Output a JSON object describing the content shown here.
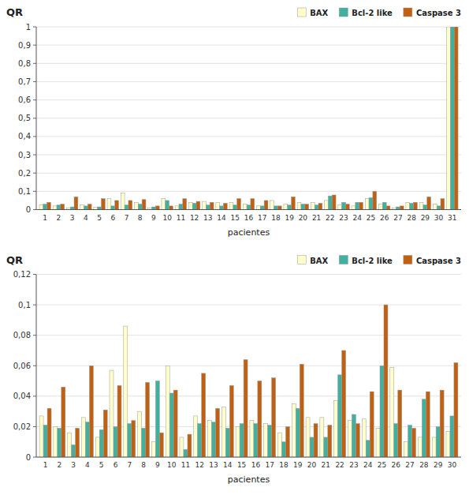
{
  "chart_data": [
    {
      "type": "bar",
      "ylabel": "QR",
      "xlabel": "pacientes",
      "categories": [
        1,
        2,
        3,
        4,
        5,
        6,
        7,
        8,
        9,
        10,
        11,
        12,
        13,
        14,
        15,
        16,
        17,
        18,
        19,
        20,
        21,
        22,
        23,
        24,
        25,
        26,
        27,
        28,
        29,
        30,
        31
      ],
      "series": [
        {
          "name": "BAX",
          "color": "#ffffcc",
          "values": [
            0.027,
            0.02,
            0.01,
            0.025,
            0.012,
            0.06,
            0.09,
            0.04,
            0.01,
            0.06,
            0.02,
            0.04,
            0.045,
            0.04,
            0.04,
            0.03,
            0.02,
            0.05,
            0.03,
            0.04,
            0.04,
            0.05,
            0.025,
            0.02,
            0.06,
            0.03,
            0.01,
            0.04,
            0.04,
            0.03,
            1.0
          ]
        },
        {
          "name": "Bcl-2 like",
          "color": "#40b0a0",
          "values": [
            0.03,
            0.025,
            0.015,
            0.02,
            0.015,
            0.02,
            0.025,
            0.03,
            0.015,
            0.05,
            0.03,
            0.035,
            0.025,
            0.02,
            0.025,
            0.025,
            0.02,
            0.02,
            0.025,
            0.03,
            0.025,
            0.075,
            0.04,
            0.04,
            0.065,
            0.04,
            0.015,
            0.035,
            0.025,
            0.02,
            1.0
          ]
        },
        {
          "name": "Caspase 3",
          "color": "#c06010",
          "values": [
            0.04,
            0.03,
            0.07,
            0.03,
            0.06,
            0.05,
            0.05,
            0.055,
            0.02,
            0.02,
            0.06,
            0.045,
            0.04,
            0.035,
            0.06,
            0.06,
            0.05,
            0.02,
            0.07,
            0.03,
            0.035,
            0.08,
            0.03,
            0.04,
            0.1,
            0.02,
            0.02,
            0.04,
            0.07,
            0.06,
            1.0
          ]
        }
      ],
      "ylim": [
        0,
        1.0
      ],
      "yticks": [
        0,
        {
          "value": 0.1,
          "label": "0,1"
        },
        {
          "value": 0.2,
          "label": "0,2"
        },
        {
          "value": 0.3,
          "label": "0,3"
        },
        {
          "value": 0.4,
          "label": "0,4"
        },
        {
          "value": 0.5,
          "label": "0,5"
        },
        {
          "value": 0.6,
          "label": "0,6"
        },
        {
          "value": 0.7,
          "label": "0,7"
        },
        {
          "value": 0.8,
          "label": "0,8"
        },
        {
          "value": 0.9,
          "label": "0,9"
        },
        1
      ],
      "grid": true,
      "legend": "upper right"
    },
    {
      "type": "bar",
      "ylabel": "QR",
      "xlabel": "pacientes",
      "categories": [
        1,
        2,
        3,
        4,
        5,
        6,
        7,
        8,
        9,
        10,
        11,
        12,
        13,
        14,
        15,
        16,
        17,
        18,
        19,
        20,
        21,
        22,
        23,
        24,
        25,
        26,
        27,
        28,
        29,
        30
      ],
      "series": [
        {
          "name": "BAX",
          "color": "#ffffcc",
          "values": [
            0.027,
            0.02,
            0.016,
            0.026,
            0.013,
            0.057,
            0.086,
            0.03,
            0.01,
            0.06,
            0.013,
            0.027,
            0.024,
            0.033,
            0.02,
            0.024,
            0.022,
            0.016,
            0.035,
            0.026,
            0.026,
            0.037,
            0.024,
            0.025,
            0.019,
            0.059,
            0.01,
            0.013,
            0.013,
            0.017
          ]
        },
        {
          "name": "Bcl-2 like",
          "color": "#40b0a0",
          "values": [
            0.021,
            0.019,
            0.008,
            0.023,
            0.018,
            0.02,
            0.022,
            0.019,
            0.05,
            0.042,
            0.005,
            0.022,
            0.023,
            0.019,
            0.022,
            0.022,
            0.021,
            0.01,
            0.032,
            0.013,
            0.013,
            0.054,
            0.028,
            0.011,
            0.06,
            0.022,
            0.021,
            0.038,
            0.02,
            0.027
          ]
        },
        {
          "name": "Caspase 3",
          "color": "#c06010",
          "values": [
            0.032,
            0.046,
            0.019,
            0.06,
            0.031,
            0.047,
            0.024,
            0.049,
            0.016,
            0.044,
            0.015,
            0.055,
            0.032,
            0.047,
            0.064,
            0.05,
            0.052,
            0.02,
            0.061,
            0.022,
            0.021,
            0.07,
            0.022,
            0.043,
            0.1,
            0.044,
            0.019,
            0.043,
            0.044,
            0.062
          ]
        }
      ],
      "ylim": [
        0,
        0.12
      ],
      "yticks": [
        0,
        {
          "value": 0.02,
          "label": "0,02"
        },
        {
          "value": 0.04,
          "label": "0,04"
        },
        {
          "value": 0.06,
          "label": "0,06"
        },
        {
          "value": 0.08,
          "label": "0,08"
        },
        {
          "value": 0.1,
          "label": "0,1"
        },
        {
          "value": 0.12,
          "label": "0,12"
        }
      ],
      "grid": true,
      "legend": "upper right"
    }
  ]
}
